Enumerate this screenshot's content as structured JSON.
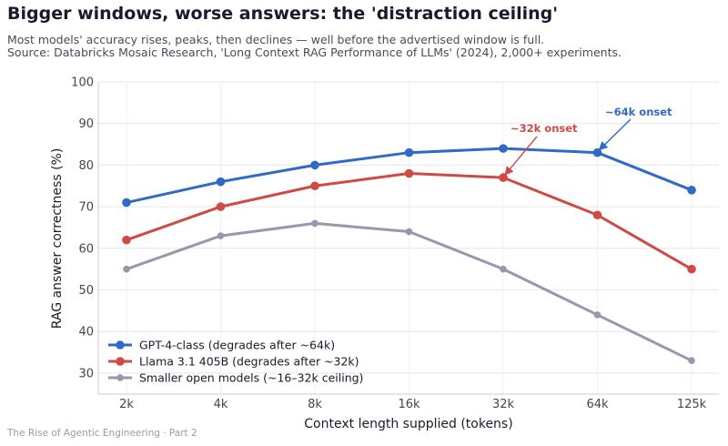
{
  "page": {
    "title": "Bigger windows, worse answers: the 'distraction ceiling'",
    "subtitle_line1": "Most models' accuracy rises, peaks, then declines — well before the advertised window is full.",
    "subtitle_line2": "Source: Databricks Mosaic Research, 'Long Context RAG Performance of LLMs' (2024), 2,000+ experiments.",
    "footer": "The Rise of Agentic Engineering · Part 2"
  },
  "chart_data": {
    "type": "line",
    "categories": [
      "2k",
      "4k",
      "8k",
      "16k",
      "32k",
      "64k",
      "125k"
    ],
    "xlabel": "Context length supplied (tokens)",
    "ylabel": "RAG answer correctness (%)",
    "ylim": [
      25,
      100
    ],
    "yticks": [
      30,
      40,
      50,
      60,
      70,
      80,
      90,
      100
    ],
    "grid": true,
    "legend_position": "bottom-left",
    "series": [
      {
        "name": "GPT-4-class (degrades after ~64k)",
        "values": [
          71,
          76,
          80,
          83,
          84,
          83,
          74
        ],
        "color": "#2f6bc6"
      },
      {
        "name": "Llama 3.1 405B (degrades after ~32k)",
        "values": [
          62,
          70,
          75,
          78,
          77,
          68,
          55
        ],
        "color": "#d04a45"
      },
      {
        "name": "Smaller open models (~16–32k ceiling)",
        "values": [
          55,
          63,
          66,
          64,
          55,
          44,
          33
        ],
        "color": "#9699ab"
      }
    ],
    "annotations": [
      {
        "text": "~64k onset",
        "series": 0,
        "category": "64k",
        "color": "#2f6bc6"
      },
      {
        "text": "~32k onset",
        "series": 1,
        "category": "32k",
        "color": "#d04a45"
      }
    ]
  }
}
